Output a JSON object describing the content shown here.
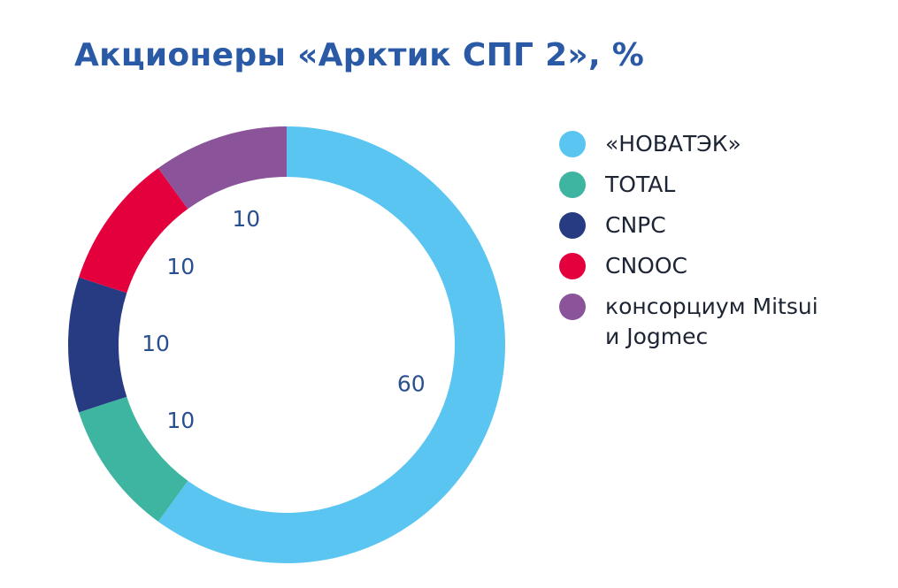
{
  "chart_data": {
    "type": "pie",
    "title": "Акционеры «Арктик СПГ 2», %",
    "categories": [
      "«НОВАТЭК»",
      "TOTAL",
      "CNPC",
      "CNOOC",
      "консорциум Mitsui и Jogmec"
    ],
    "values": [
      60,
      10,
      10,
      10,
      10
    ],
    "value_labels": [
      "60",
      "10",
      "10",
      "10",
      "10"
    ],
    "colors": [
      "#5bc5f2",
      "#3db5a0",
      "#263b82",
      "#e4003d",
      "#8a539a"
    ],
    "donut": true,
    "legend_position": "right"
  },
  "legend": {
    "items": [
      {
        "lines": [
          "«НОВАТЭК»"
        ],
        "color": "#5bc5f2",
        "icon": "circle-swatch"
      },
      {
        "lines": [
          "TOTAL"
        ],
        "color": "#3db5a0",
        "icon": "circle-swatch"
      },
      {
        "lines": [
          "CNPC"
        ],
        "color": "#263b82",
        "icon": "circle-swatch"
      },
      {
        "lines": [
          "CNOOC"
        ],
        "color": "#e4003d",
        "icon": "circle-swatch"
      },
      {
        "lines": [
          "консорциум Mitsui",
          "и Jogmec"
        ],
        "color": "#8a539a",
        "icon": "circle-swatch"
      }
    ]
  }
}
